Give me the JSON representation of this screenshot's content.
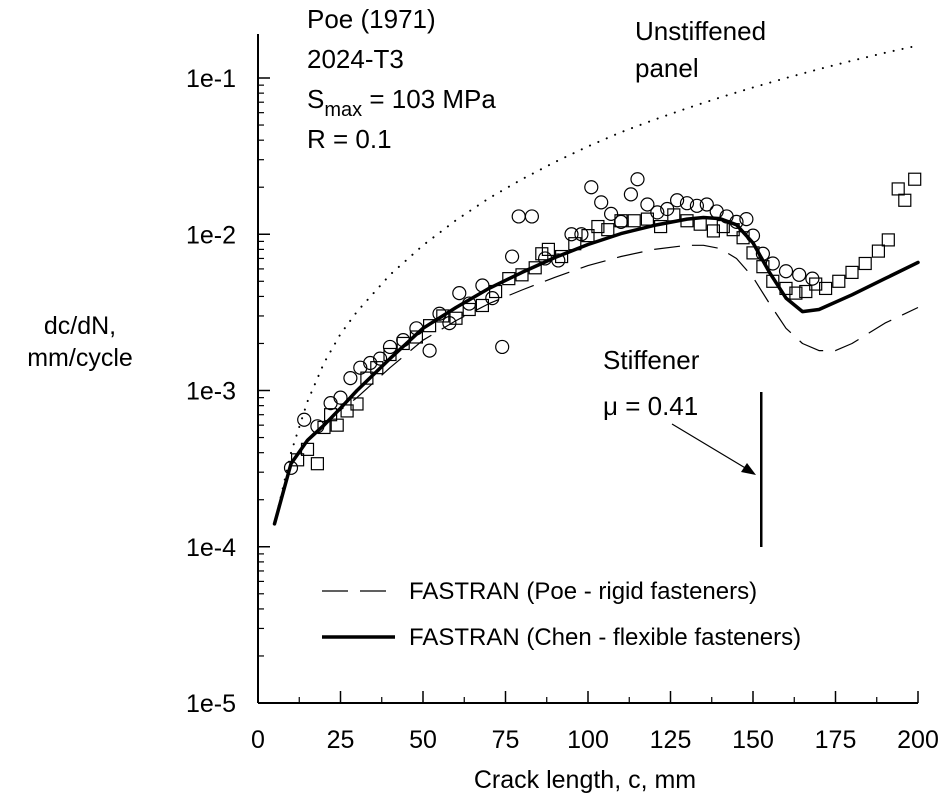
{
  "chart_data": {
    "type": "scatter",
    "title_lines": [
      "Poe (1971)",
      "2024-T3"
    ],
    "condition_smax_prefix": "S",
    "condition_smax_sub": "max",
    "condition_smax_rest": " = 103 MPa",
    "condition_r": "R = 0.1",
    "xlabel": "Crack length, c, mm",
    "ylabel_lines": [
      "dc/dN,",
      "mm/cycle"
    ],
    "x_ticks": [
      "0",
      "25",
      "50",
      "75",
      "100",
      "125",
      "150",
      "175",
      "200"
    ],
    "y_ticks": [
      "1e-5",
      "1e-4",
      "1e-3",
      "1e-2",
      "1e-1"
    ],
    "xlim": [
      0,
      200
    ],
    "ylim": [
      1e-05,
      0.1
    ],
    "y_scale": "log",
    "annotations": {
      "unstiffened_line1": "Unstiffened",
      "unstiffened_line2": "panel",
      "stiffener": "Stiffener",
      "mu": "μ = 0.41"
    },
    "stiffener_x": 152.5,
    "legend": {
      "placement": "lower-center",
      "entries": [
        "FASTRAN (Poe - rigid fasteners)",
        "FASTRAN (Chen - flexible fasteners)"
      ]
    },
    "series": [
      {
        "name": "Unstiffened panel",
        "style": "dotted",
        "x": [
          5,
          10,
          15,
          20,
          25,
          30,
          40,
          50,
          60,
          70,
          80,
          90,
          100,
          110,
          120,
          130,
          140,
          150,
          160,
          170,
          180,
          190,
          198
        ],
        "y": [
          0.00014,
          0.0004,
          0.00085,
          0.0015,
          0.0023,
          0.0032,
          0.0055,
          0.0085,
          0.0123,
          0.017,
          0.0225,
          0.029,
          0.0365,
          0.045,
          0.054,
          0.064,
          0.075,
          0.087,
          0.1,
          0.114,
          0.129,
          0.145,
          0.158
        ]
      },
      {
        "name": "FASTRAN (Poe - rigid fasteners)",
        "style": "dashed",
        "x": [
          5,
          10,
          15,
          20,
          25,
          30,
          40,
          50,
          60,
          70,
          80,
          90,
          100,
          110,
          120,
          130,
          135,
          140,
          145,
          150,
          155,
          160,
          165,
          170,
          175,
          180,
          190,
          200
        ],
        "y": [
          0.00014,
          0.00034,
          0.00049,
          0.00062,
          0.00075,
          0.0009,
          0.0014,
          0.0021,
          0.0028,
          0.0036,
          0.0044,
          0.0053,
          0.0063,
          0.0072,
          0.008,
          0.0085,
          0.0085,
          0.0081,
          0.007,
          0.0053,
          0.0036,
          0.0025,
          0.002,
          0.0018,
          0.0018,
          0.002,
          0.0027,
          0.0034
        ]
      },
      {
        "name": "FASTRAN (Chen - flexible fasteners)",
        "style": "solid-thick",
        "x": [
          5,
          10,
          15,
          20,
          25,
          30,
          40,
          50,
          60,
          70,
          80,
          90,
          100,
          110,
          120,
          130,
          135,
          140,
          145,
          150,
          155,
          160,
          165,
          170,
          180,
          190,
          200
        ],
        "y": [
          0.00014,
          0.00034,
          0.00048,
          0.0006,
          0.00077,
          0.001,
          0.0016,
          0.0025,
          0.0034,
          0.0045,
          0.0057,
          0.0071,
          0.0086,
          0.0101,
          0.0114,
          0.0125,
          0.0128,
          0.0126,
          0.0115,
          0.0088,
          0.0057,
          0.0039,
          0.0032,
          0.0033,
          0.0041,
          0.0052,
          0.0066
        ]
      },
      {
        "name": "Test data (circles)",
        "marker": "circle",
        "x": [
          10,
          14,
          18,
          22,
          25,
          28,
          31,
          34,
          37,
          40,
          44,
          48,
          52,
          55,
          58,
          61,
          64,
          68,
          71,
          74,
          77,
          79,
          83,
          87,
          91,
          95,
          98,
          101,
          104,
          107,
          110,
          113,
          115,
          118,
          121,
          124,
          127,
          130,
          133,
          136,
          139,
          142,
          145,
          148,
          150,
          153,
          156,
          160,
          164,
          168
        ],
        "y": [
          0.00032,
          0.00065,
          0.00059,
          0.00083,
          0.0009,
          0.0012,
          0.0014,
          0.0015,
          0.0016,
          0.0019,
          0.0021,
          0.0025,
          0.0018,
          0.0031,
          0.0027,
          0.0042,
          0.0036,
          0.0047,
          0.0039,
          0.0019,
          0.0072,
          0.013,
          0.013,
          0.007,
          0.0068,
          0.01,
          0.01,
          0.02,
          0.016,
          0.0135,
          0.012,
          0.018,
          0.0225,
          0.0155,
          0.0138,
          0.0145,
          0.0165,
          0.0158,
          0.0152,
          0.0155,
          0.014,
          0.013,
          0.012,
          0.0125,
          0.0098,
          0.0075,
          0.0065,
          0.0058,
          0.0055,
          0.0052
        ]
      },
      {
        "name": "Test data (squares)",
        "marker": "square",
        "x": [
          12,
          15,
          18,
          20,
          22,
          24,
          27,
          30,
          33,
          36,
          40,
          44,
          48,
          52,
          56,
          60,
          64,
          68,
          72,
          76,
          80,
          84,
          86,
          88,
          92,
          96,
          100,
          103,
          106,
          110,
          114,
          118,
          122,
          126,
          130,
          134,
          138,
          141,
          144,
          147,
          150,
          153,
          156,
          160,
          163,
          166,
          169,
          172,
          176,
          180,
          184,
          188,
          191,
          194,
          196,
          199
        ],
        "y": [
          0.00036,
          0.00042,
          0.00034,
          0.00058,
          0.0007,
          0.0006,
          0.00074,
          0.00082,
          0.0012,
          0.0014,
          0.0017,
          0.002,
          0.0022,
          0.0026,
          0.003,
          0.0029,
          0.0033,
          0.0035,
          0.0043,
          0.0052,
          0.0055,
          0.0061,
          0.0075,
          0.008,
          0.0072,
          0.0087,
          0.0098,
          0.0112,
          0.0107,
          0.0122,
          0.0122,
          0.0125,
          0.0112,
          0.0133,
          0.0122,
          0.0116,
          0.0105,
          0.0112,
          0.0107,
          0.0095,
          0.0076,
          0.0062,
          0.005,
          0.0045,
          0.0042,
          0.0043,
          0.0048,
          0.0045,
          0.005,
          0.0057,
          0.0065,
          0.0078,
          0.0092,
          0.0195,
          0.0165,
          0.0225
        ]
      }
    ]
  }
}
